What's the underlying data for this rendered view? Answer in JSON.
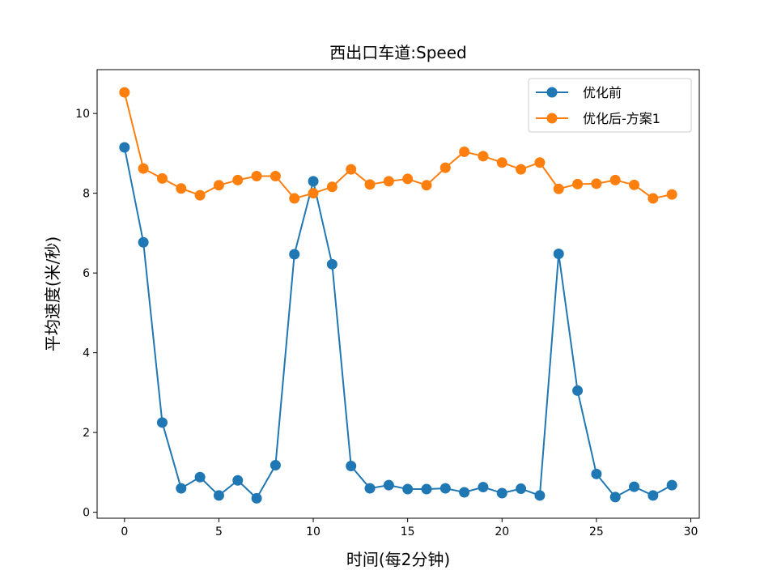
{
  "chart_data": {
    "type": "line",
    "title": "西出口车道:Speed",
    "xlabel": "时间(每2分钟)",
    "ylabel": "平均速度(米/秒)",
    "xlim": [
      -1.45,
      30.45
    ],
    "ylim": [
      -0.15,
      11.1
    ],
    "xticks": [
      0,
      5,
      10,
      15,
      20,
      25,
      30
    ],
    "yticks": [
      0,
      2,
      4,
      6,
      8,
      10
    ],
    "grid": false,
    "legend_position": "upper right",
    "x": [
      0,
      1,
      2,
      3,
      4,
      5,
      6,
      7,
      8,
      9,
      10,
      11,
      12,
      13,
      14,
      15,
      16,
      17,
      18,
      19,
      20,
      21,
      22,
      23,
      24,
      25,
      26,
      27,
      28,
      29
    ],
    "series": [
      {
        "name": "优化前",
        "color": "#1f77b4",
        "marker": "circle",
        "values": [
          9.15,
          6.77,
          2.25,
          0.6,
          0.88,
          0.42,
          0.8,
          0.35,
          1.18,
          6.47,
          8.3,
          6.22,
          1.16,
          0.6,
          0.68,
          0.58,
          0.58,
          0.6,
          0.5,
          0.63,
          0.48,
          0.59,
          0.42,
          6.48,
          3.05,
          0.96,
          0.38,
          0.64,
          0.42,
          0.68
        ]
      },
      {
        "name": "优化后-方案1",
        "color": "#ff7f0e",
        "marker": "circle",
        "values": [
          10.53,
          8.62,
          8.37,
          8.12,
          7.95,
          8.2,
          8.33,
          8.43,
          8.43,
          7.87,
          8.0,
          8.16,
          8.6,
          8.22,
          8.3,
          8.36,
          8.2,
          8.64,
          9.04,
          8.93,
          8.77,
          8.6,
          8.77,
          8.11,
          8.23,
          8.24,
          8.33,
          8.21,
          7.87,
          7.97
        ]
      }
    ]
  }
}
